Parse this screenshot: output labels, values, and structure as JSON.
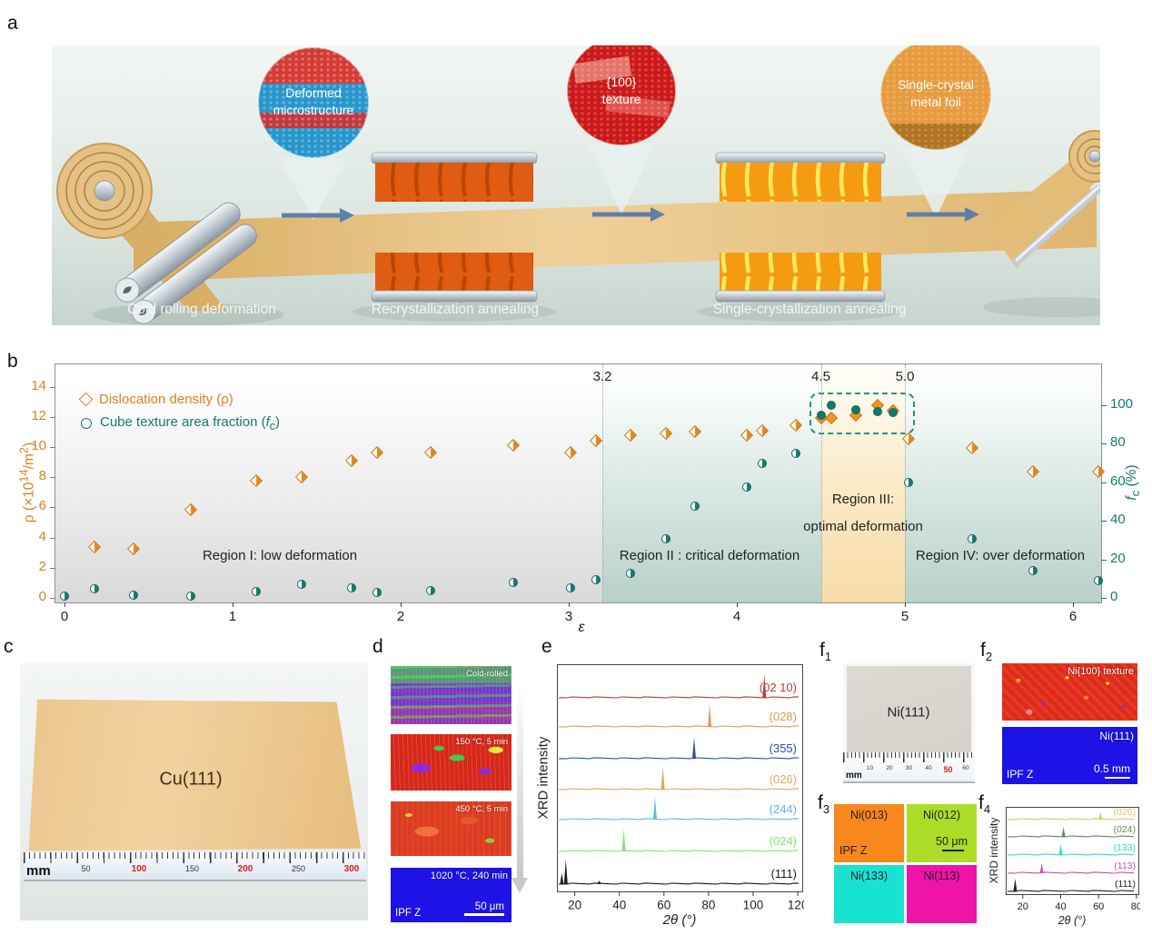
{
  "figure": {
    "panel_letters": {
      "a": "a",
      "b": "b",
      "c": "c",
      "d": "d",
      "e": "e",
      "f": "f",
      "f_subs": [
        "1",
        "2",
        "3",
        "4"
      ]
    }
  },
  "panel_a": {
    "callouts": [
      {
        "line1": "Deformed",
        "line2": "microstructure"
      },
      {
        "line1": "{100}",
        "line2": "texture"
      },
      {
        "line1": "Single-crystal",
        "line2": "metal foil"
      }
    ],
    "steps": [
      "Cold rolling deformation",
      "Recrystallization  annealing",
      "Single-crystallization annealing"
    ]
  },
  "panel_b": {
    "boundary_labels": [
      "3.2",
      "4.5",
      "5.0"
    ],
    "regions": {
      "r1": "Region I: low deformation",
      "r2": "Region II : critical deformation",
      "r3a": "Region III:",
      "r3b": "optimal deformation",
      "r4": "Region IV: over deformation"
    },
    "legend": {
      "item1": "Dislocation density (ρ)",
      "item2_pre": "Cube texture area fraction (",
      "item2_f": "f",
      "item2_sub": "c",
      "item2_suf": ")"
    },
    "ylabel_left": {
      "pre": "ρ (×10",
      "sup": "14",
      "mid": "/m",
      "sup2": "2",
      "suf": ")"
    },
    "ylabel_right": {
      "f": "f",
      "sub": "c",
      "suf": " (%)"
    },
    "xlabel": "ε"
  },
  "panel_c": {
    "foil": "Cu(111)",
    "unit": "mm",
    "marks": [
      {
        "v": "50",
        "red": false
      },
      {
        "v": "100",
        "red": true
      },
      {
        "v": "150",
        "red": false
      },
      {
        "v": "200",
        "red": true
      },
      {
        "v": "250",
        "red": false
      },
      {
        "v": "300",
        "red": true
      }
    ]
  },
  "panel_d": {
    "maps": [
      {
        "label": "Cold-rolled"
      },
      {
        "label": "150 °C, 5 min"
      },
      {
        "label": "450 °C, 5 min"
      },
      {
        "label": "1020 °C, 240 min"
      }
    ],
    "ipf": "IPF Z",
    "scalebar": "50 μm"
  },
  "panel_f1": {
    "foil": "Ni(111)",
    "unit": "mm",
    "marks": [
      {
        "v": "10",
        "red": false
      },
      {
        "v": "20",
        "red": false
      },
      {
        "v": "30",
        "red": false
      },
      {
        "v": "40",
        "red": false
      },
      {
        "v": "50",
        "red": true
      },
      {
        "v": "60",
        "red": false
      }
    ]
  },
  "panel_f2": {
    "top": "Ni{100} texture",
    "bottom": "Ni(111)",
    "ipf": "IPF Z",
    "scalebar": "0.5 mm"
  },
  "panel_f3": {
    "cells": [
      {
        "label": "Ni(013)",
        "color": "#f8871c"
      },
      {
        "label": "Ni(012)",
        "color": "#abdc28"
      },
      {
        "label": "Ni(133)",
        "color": "#18e2d2"
      },
      {
        "label": "Ni(113)",
        "color": "#f013a8"
      }
    ],
    "ipf": "IPF Z",
    "scalebar": "50 μm"
  },
  "chart_data": [
    {
      "id": "b",
      "type": "scatter",
      "xlabel": "ε",
      "x_ticks": [
        0,
        1,
        2,
        3,
        4,
        5,
        6
      ],
      "left_axis": {
        "label": "ρ (×10¹⁴/m²)",
        "ticks": [
          0,
          2,
          4,
          6,
          8,
          10,
          12,
          14
        ],
        "color": "#d9821f"
      },
      "right_axis": {
        "label": "fc (%)",
        "ticks": [
          0,
          20,
          40,
          60,
          80,
          100
        ],
        "color": "#157a72"
      },
      "boundaries": [
        3.2,
        4.5,
        5.0
      ],
      "region_band": [
        4.5,
        5.0
      ],
      "legend_position": "top-left",
      "series": [
        {
          "name": "Dislocation density (ρ)",
          "marker": "diamond",
          "axis": "left",
          "color": "#e0861a",
          "solid_between": [
            4.45,
            5.01
          ],
          "points": [
            [
              0.18,
              3.4
            ],
            [
              0.41,
              3.25
            ],
            [
              0.75,
              5.85
            ],
            [
              1.14,
              7.8
            ],
            [
              1.41,
              8.0
            ],
            [
              1.71,
              9.1
            ],
            [
              1.86,
              9.65
            ],
            [
              2.18,
              9.65
            ],
            [
              2.67,
              10.1
            ],
            [
              3.01,
              9.65
            ],
            [
              3.16,
              10.45
            ],
            [
              3.37,
              10.8
            ],
            [
              3.58,
              10.9
            ],
            [
              3.75,
              11.0
            ],
            [
              4.06,
              10.8
            ],
            [
              4.15,
              11.1
            ],
            [
              4.35,
              11.45
            ],
            [
              4.5,
              11.95
            ],
            [
              4.56,
              11.9
            ],
            [
              4.71,
              12.1
            ],
            [
              4.84,
              12.75
            ],
            [
              4.93,
              12.4
            ],
            [
              5.02,
              10.55
            ],
            [
              5.4,
              9.95
            ],
            [
              5.76,
              8.35
            ],
            [
              6.15,
              8.35
            ]
          ]
        },
        {
          "name": "Cube texture area fraction (fc)",
          "marker": "circle",
          "axis": "right",
          "color": "#157a72",
          "solid_between": [
            4.45,
            5.01
          ],
          "points": [
            [
              0.0,
              0.8
            ],
            [
              0.18,
              4.5
            ],
            [
              0.41,
              1.2
            ],
            [
              0.75,
              0.8
            ],
            [
              1.14,
              3.5
            ],
            [
              1.41,
              7.0
            ],
            [
              1.71,
              5.0
            ],
            [
              1.86,
              3.0
            ],
            [
              2.18,
              4.0
            ],
            [
              2.67,
              8.0
            ],
            [
              3.01,
              5.0
            ],
            [
              3.16,
              9.3
            ],
            [
              3.37,
              12.6
            ],
            [
              3.58,
              30.5
            ],
            [
              3.75,
              47.5
            ],
            [
              4.06,
              57.5
            ],
            [
              4.15,
              70.0
            ],
            [
              4.35,
              75.0
            ],
            [
              4.5,
              95.0
            ],
            [
              4.56,
              100.0
            ],
            [
              4.71,
              97.5
            ],
            [
              4.84,
              96.5
            ],
            [
              4.93,
              96.0
            ],
            [
              5.02,
              60.0
            ],
            [
              5.4,
              30.5
            ],
            [
              5.76,
              14.0
            ],
            [
              6.15,
              9.0
            ]
          ]
        }
      ]
    },
    {
      "id": "e",
      "type": "xrd",
      "ylabel": "XRD intensity",
      "xlabel": "2θ (°)",
      "x_range": [
        12,
        122
      ],
      "x_ticks": [
        20,
        40,
        60,
        80,
        100,
        120
      ],
      "traces": [
        {
          "label": "(111)",
          "color": "#1a1a1a",
          "peaks": [
            [
              16,
              27
            ],
            [
              14.2,
              12
            ],
            [
              31,
              4
            ]
          ]
        },
        {
          "label": "(024)",
          "color": "#79e87a",
          "peaks": [
            [
              42,
              25
            ]
          ]
        },
        {
          "label": "(244)",
          "color": "#5fb9e6",
          "peaks": [
            [
              56,
              25
            ]
          ]
        },
        {
          "label": "(026)",
          "color": "#dfa45f",
          "peaks": [
            [
              59.5,
              25
            ]
          ]
        },
        {
          "label": "(355)",
          "color": "#2c4fa3",
          "peaks": [
            [
              73.5,
              24
            ]
          ]
        },
        {
          "label": "(028)",
          "color": "#dd9a57",
          "peaks": [
            [
              80.5,
              25
            ]
          ]
        },
        {
          "label": "(02 10)",
          "color": "#c03a2e",
          "peaks": [
            [
              105,
              26
            ]
          ]
        }
      ]
    },
    {
      "id": "f4",
      "type": "xrd",
      "ylabel": "XRD intensity",
      "xlabel": "2θ (°)",
      "x_range": [
        11,
        81
      ],
      "x_ticks": [
        20,
        40,
        60,
        80
      ],
      "traces": [
        {
          "label": "(111)",
          "color": "#222222",
          "peaks": [
            [
              16,
              14
            ]
          ]
        },
        {
          "label": "(113)",
          "color": "#cf4fae",
          "peaks": [
            [
              30,
              11
            ]
          ]
        },
        {
          "label": "(133)",
          "color": "#38d6d6",
          "peaks": [
            [
              40,
              12
            ]
          ]
        },
        {
          "label": "(024)",
          "color": "#6d8457",
          "peaks": [
            [
              41.5,
              11
            ]
          ]
        },
        {
          "label": "(026)",
          "color": "#d9c568",
          "peaks": [
            [
              61,
              9
            ]
          ]
        }
      ]
    }
  ]
}
